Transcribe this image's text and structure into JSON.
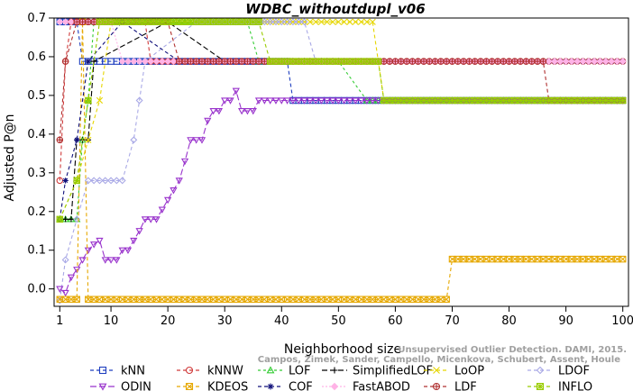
{
  "chart_data": {
    "type": "line",
    "title": "WDBC_withoutdupl_v06",
    "xlabel": "Neighborhood size",
    "ylabel": "Adjusted P@n",
    "xlim": [
      0,
      101
    ],
    "ylim": [
      -0.045,
      0.7
    ],
    "xticks": [
      1,
      10,
      20,
      30,
      40,
      50,
      60,
      70,
      80,
      90,
      100
    ],
    "yticks": [
      0.0,
      0.1,
      0.2,
      0.3,
      0.4,
      0.5,
      0.6,
      0.7
    ],
    "grid": false,
    "legend_position": "bottom",
    "watermark": {
      "line1": "Unsupervised Outlier Detection. DAMI, 2015.",
      "line2": "Campos, Zimek, Sander, Campello, Micenkova, Schubert, Assent, Houle"
    },
    "series": [
      {
        "name": "kNN",
        "color": "#1f3fbf",
        "marker": "square",
        "dash": "4,3",
        "segments": [
          [
            1,
            0.69
          ],
          [
            4,
            0.69
          ],
          [
            5,
            0.588
          ],
          [
            41,
            0.588
          ],
          [
            42,
            0.487
          ],
          [
            100,
            0.487
          ]
        ]
      },
      {
        "name": "kNNW",
        "color": "#d03a3a",
        "marker": "circle",
        "dash": "4,3",
        "segments": [
          [
            1,
            0.28
          ],
          [
            2,
            0.588
          ],
          [
            3,
            0.69
          ],
          [
            16,
            0.69
          ],
          [
            17,
            0.588
          ],
          [
            100,
            0.588
          ]
        ]
      },
      {
        "name": "LOF",
        "color": "#33cc33",
        "marker": "triangle-up",
        "dash": "3,3",
        "segments": [
          [
            1,
            0.18
          ],
          [
            4,
            0.18
          ],
          [
            5,
            0.385
          ],
          [
            6,
            0.487
          ],
          [
            7,
            0.69
          ],
          [
            34,
            0.69
          ],
          [
            36,
            0.588
          ],
          [
            50,
            0.588
          ],
          [
            55,
            0.487
          ],
          [
            100,
            0.487
          ]
        ]
      },
      {
        "name": "SimplifiedLOF",
        "color": "#000000",
        "marker": "plus",
        "dash": "6,3",
        "segments": [
          [
            1,
            0.18
          ],
          [
            3,
            0.18
          ],
          [
            4,
            0.385
          ],
          [
            6,
            0.385
          ],
          [
            7,
            0.588
          ],
          [
            20,
            0.69
          ],
          [
            30,
            0.588
          ],
          [
            100,
            0.588
          ]
        ]
      },
      {
        "name": "LoOP",
        "color": "#e6d600",
        "marker": "x",
        "dash": "4,3",
        "segments": [
          [
            1,
            0.18
          ],
          [
            4,
            0.28
          ],
          [
            6,
            0.385
          ],
          [
            8,
            0.487
          ],
          [
            10,
            0.69
          ],
          [
            56,
            0.69
          ],
          [
            58,
            0.487
          ],
          [
            100,
            0.487
          ]
        ]
      },
      {
        "name": "LDOF",
        "color": "#a9a9e6",
        "marker": "diamond",
        "dash": "4,3",
        "segments": [
          [
            1,
            -0.03
          ],
          [
            2,
            0.075
          ],
          [
            4,
            0.18
          ],
          [
            6,
            0.28
          ],
          [
            12,
            0.28
          ],
          [
            14,
            0.385
          ],
          [
            15,
            0.487
          ],
          [
            16,
            0.588
          ],
          [
            25,
            0.69
          ],
          [
            44,
            0.69
          ],
          [
            46,
            0.588
          ],
          [
            100,
            0.588
          ]
        ]
      },
      {
        "name": "ODIN",
        "color": "#9933cc",
        "marker": "triangle-down",
        "dash": "7,3",
        "segments": [
          [
            1,
            0.0
          ],
          [
            2,
            -0.01
          ],
          [
            3,
            0.03
          ],
          [
            4,
            0.05
          ],
          [
            5,
            0.075
          ],
          [
            6,
            0.1
          ],
          [
            7,
            0.115
          ],
          [
            8,
            0.125
          ],
          [
            9,
            0.075
          ],
          [
            10,
            0.075
          ],
          [
            11,
            0.075
          ],
          [
            12,
            0.1
          ],
          [
            13,
            0.1
          ],
          [
            14,
            0.125
          ],
          [
            15,
            0.15
          ],
          [
            16,
            0.18
          ],
          [
            17,
            0.18
          ],
          [
            18,
            0.18
          ],
          [
            19,
            0.205
          ],
          [
            20,
            0.23
          ],
          [
            21,
            0.255
          ],
          [
            22,
            0.28
          ],
          [
            23,
            0.33
          ],
          [
            24,
            0.385
          ],
          [
            25,
            0.385
          ],
          [
            26,
            0.385
          ],
          [
            27,
            0.435
          ],
          [
            28,
            0.46
          ],
          [
            29,
            0.46
          ],
          [
            30,
            0.487
          ],
          [
            31,
            0.487
          ],
          [
            32,
            0.512
          ],
          [
            33,
            0.46
          ],
          [
            34,
            0.46
          ],
          [
            35,
            0.46
          ],
          [
            36,
            0.487
          ],
          [
            37,
            0.487
          ],
          [
            38,
            0.487
          ],
          [
            39,
            0.487
          ],
          [
            40,
            0.487
          ],
          [
            41,
            0.487
          ],
          [
            42,
            0.487
          ],
          [
            100,
            0.487
          ]
        ]
      },
      {
        "name": "KDEOS",
        "color": "#e6a800",
        "marker": "square-x",
        "dash": "4,3",
        "segments": [
          [
            1,
            -0.027
          ],
          [
            4,
            -0.027
          ],
          [
            5,
            0.69
          ],
          [
            6,
            -0.027
          ],
          [
            69,
            -0.027
          ],
          [
            70,
            0.077
          ],
          [
            100,
            0.077
          ]
        ]
      },
      {
        "name": "COF",
        "color": "#10107a",
        "marker": "asterisk",
        "dash": "4,3",
        "segments": [
          [
            1,
            0.18
          ],
          [
            2,
            0.28
          ],
          [
            4,
            0.385
          ],
          [
            6,
            0.588
          ],
          [
            12,
            0.69
          ],
          [
            22,
            0.588
          ],
          [
            44,
            0.588
          ],
          [
            100,
            0.588
          ]
        ]
      },
      {
        "name": "FastABOD",
        "color": "#ffb3e6",
        "marker": "diamond-filled",
        "dash": "2,2",
        "segments": [
          [
            1,
            0.69
          ],
          [
            10,
            0.69
          ],
          [
            12,
            0.588
          ],
          [
            60,
            0.588
          ],
          [
            100,
            0.588
          ]
        ]
      },
      {
        "name": "LDF",
        "color": "#b03030",
        "marker": "circle-plus",
        "dash": "4,3",
        "segments": [
          [
            1,
            0.385
          ],
          [
            2,
            0.588
          ],
          [
            4,
            0.69
          ],
          [
            20,
            0.69
          ],
          [
            22,
            0.588
          ],
          [
            86,
            0.588
          ],
          [
            87,
            0.487
          ],
          [
            100,
            0.487
          ]
        ]
      },
      {
        "name": "INFLO",
        "color": "#99cc00",
        "marker": "square-star",
        "dash": "4,3",
        "segments": [
          [
            1,
            0.18
          ],
          [
            4,
            0.28
          ],
          [
            6,
            0.487
          ],
          [
            8,
            0.69
          ],
          [
            36,
            0.69
          ],
          [
            38,
            0.588
          ],
          [
            57,
            0.588
          ],
          [
            58,
            0.487
          ],
          [
            100,
            0.487
          ]
        ]
      }
    ]
  }
}
